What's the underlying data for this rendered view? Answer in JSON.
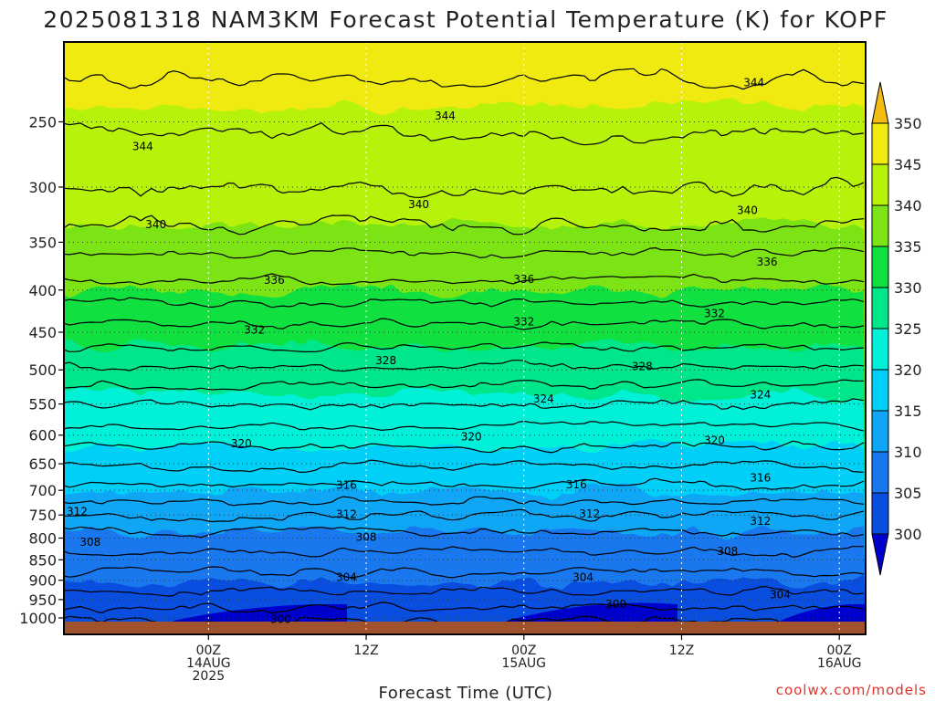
{
  "chart_data": {
    "type": "heatmap",
    "title": "2025081318 NAM3KM Forecast Potential Temperature (K) for KOPF",
    "xlabel": "Forecast Time (UTC)",
    "ylabel": "",
    "y_ticks": [
      250,
      300,
      350,
      400,
      450,
      500,
      550,
      600,
      650,
      700,
      750,
      800,
      850,
      900,
      950,
      1000
    ],
    "y_scale": "log (pressure, hPa)",
    "y_range": [
      1000,
      200
    ],
    "x_range_hours_from_init": [
      -5,
      56
    ],
    "x_ticks": [
      {
        "hour": 6,
        "lines": [
          "00Z",
          "14AUG",
          "2025"
        ]
      },
      {
        "hour": 18,
        "lines": [
          "12Z"
        ]
      },
      {
        "hour": 30,
        "lines": [
          "00Z",
          "15AUG"
        ]
      },
      {
        "hour": 42,
        "lines": [
          "12Z"
        ]
      },
      {
        "hour": 54,
        "lines": [
          "00Z",
          "16AUG"
        ]
      }
    ],
    "colorbar": {
      "levels": [
        300,
        305,
        310,
        315,
        320,
        325,
        330,
        335,
        340,
        345,
        350
      ],
      "colors": [
        "#0000cc",
        "#0a4ee0",
        "#1a78ee",
        "#0fa6f5",
        "#00d0f8",
        "#00f0d8",
        "#00e68a",
        "#10e040",
        "#7ce414",
        "#b6f20a",
        "#f0ea10",
        "#ffff00"
      ],
      "below_color": "#0000cc",
      "above_color": "#f2bc10"
    },
    "isentropes": [
      {
        "theta": 300,
        "p": 1008
      },
      {
        "theta": 302,
        "p": 970
      },
      {
        "theta": 304,
        "p": 928
      },
      {
        "theta": 306,
        "p": 880
      },
      {
        "theta": 308,
        "p": 832
      },
      {
        "theta": 310,
        "p": 787
      },
      {
        "theta": 312,
        "p": 752
      },
      {
        "theta": 314,
        "p": 720
      },
      {
        "theta": 316,
        "p": 688
      },
      {
        "theta": 318,
        "p": 655
      },
      {
        "theta": 320,
        "p": 620
      },
      {
        "theta": 322,
        "p": 585
      },
      {
        "theta": 324,
        "p": 550
      },
      {
        "theta": 326,
        "p": 522
      },
      {
        "theta": 328,
        "p": 495
      },
      {
        "theta": 330,
        "p": 468
      },
      {
        "theta": 332,
        "p": 440
      },
      {
        "theta": 334,
        "p": 415
      },
      {
        "theta": 336,
        "p": 388
      },
      {
        "theta": 338,
        "p": 360
      },
      {
        "theta": 340,
        "p": 333
      },
      {
        "theta": 342,
        "p": 300
      },
      {
        "theta": 344,
        "p": 258
      },
      {
        "theta": 346,
        "p": 222
      }
    ],
    "contour_labels": [
      {
        "text": "344",
        "hour": 1,
        "p": 268
      },
      {
        "text": "344",
        "hour": 24,
        "p": 246
      },
      {
        "text": "344",
        "hour": 47.5,
        "p": 224
      },
      {
        "text": "340",
        "hour": 2,
        "p": 333
      },
      {
        "text": "340",
        "hour": 22,
        "p": 315
      },
      {
        "text": "340",
        "hour": 47,
        "p": 320
      },
      {
        "text": "336",
        "hour": 11,
        "p": 389
      },
      {
        "text": "336",
        "hour": 30,
        "p": 388
      },
      {
        "text": "336",
        "hour": 48.5,
        "p": 370
      },
      {
        "text": "332",
        "hour": 9.5,
        "p": 447
      },
      {
        "text": "332",
        "hour": 30,
        "p": 437
      },
      {
        "text": "332",
        "hour": 44.5,
        "p": 427
      },
      {
        "text": "328",
        "hour": 19.5,
        "p": 487
      },
      {
        "text": "328",
        "hour": 39,
        "p": 495
      },
      {
        "text": "324",
        "hour": 31.5,
        "p": 542
      },
      {
        "text": "324",
        "hour": 48,
        "p": 536
      },
      {
        "text": "320",
        "hour": 8.5,
        "p": 614
      },
      {
        "text": "320",
        "hour": 26,
        "p": 603
      },
      {
        "text": "320",
        "hour": 44.5,
        "p": 609
      },
      {
        "text": "316",
        "hour": 16.5,
        "p": 690
      },
      {
        "text": "316",
        "hour": 34,
        "p": 689
      },
      {
        "text": "316",
        "hour": 48,
        "p": 676
      },
      {
        "text": "312",
        "hour": -4,
        "p": 743
      },
      {
        "text": "312",
        "hour": 16.5,
        "p": 749
      },
      {
        "text": "312",
        "hour": 35,
        "p": 748
      },
      {
        "text": "312",
        "hour": 48,
        "p": 763
      },
      {
        "text": "308",
        "hour": -3,
        "p": 809
      },
      {
        "text": "308",
        "hour": 18,
        "p": 798
      },
      {
        "text": "308",
        "hour": 45.5,
        "p": 830
      },
      {
        "text": "304",
        "hour": 16.5,
        "p": 893
      },
      {
        "text": "304",
        "hour": 34.5,
        "p": 893
      },
      {
        "text": "304",
        "hour": 49.5,
        "p": 937
      },
      {
        "text": "300",
        "hour": 11.5,
        "p": 1004
      },
      {
        "text": "300",
        "hour": 37,
        "p": 962
      }
    ],
    "ground": {
      "color": "#a0522d",
      "p_top": 1012
    }
  },
  "watermark": "coolwx.com/models"
}
